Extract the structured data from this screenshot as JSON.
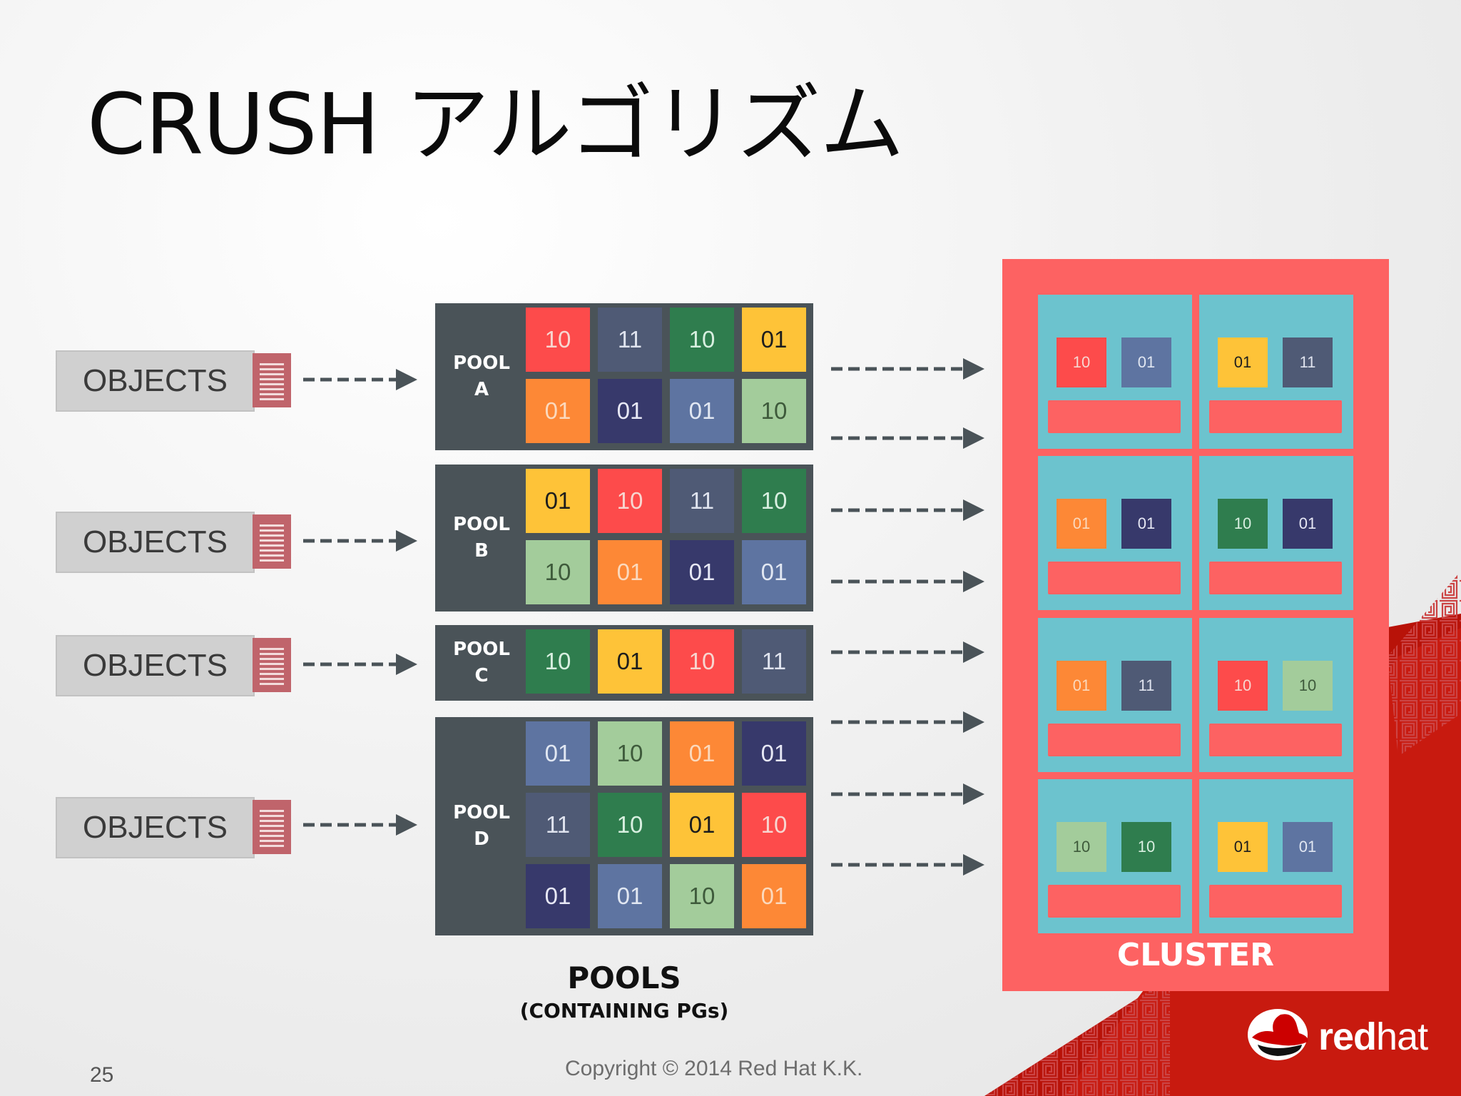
{
  "title": "CRUSH アルゴリズム",
  "objects": {
    "label": "OBJECTS",
    "icon": "document-icon",
    "count": 4
  },
  "pools": [
    {
      "line1": "POOL",
      "line2": "A",
      "cells": [
        [
          {
            "v": "10",
            "c": "red"
          },
          {
            "v": "11",
            "c": "slate"
          },
          {
            "v": "10",
            "c": "green"
          },
          {
            "v": "01",
            "c": "yellow"
          }
        ],
        [
          {
            "v": "01",
            "c": "orange"
          },
          {
            "v": "01",
            "c": "navy"
          },
          {
            "v": "01",
            "c": "blue"
          },
          {
            "v": "10",
            "c": "lightgreen"
          }
        ]
      ]
    },
    {
      "line1": "POOL",
      "line2": "B",
      "cells": [
        [
          {
            "v": "01",
            "c": "yellow"
          },
          {
            "v": "10",
            "c": "red"
          },
          {
            "v": "11",
            "c": "slate"
          },
          {
            "v": "10",
            "c": "green"
          }
        ],
        [
          {
            "v": "10",
            "c": "lightgreen"
          },
          {
            "v": "01",
            "c": "orange"
          },
          {
            "v": "01",
            "c": "navy"
          },
          {
            "v": "01",
            "c": "blue"
          }
        ]
      ]
    },
    {
      "line1": "POOL",
      "line2": "C",
      "cells": [
        [
          {
            "v": "10",
            "c": "green"
          },
          {
            "v": "01",
            "c": "yellow"
          },
          {
            "v": "10",
            "c": "red"
          },
          {
            "v": "11",
            "c": "slate"
          }
        ]
      ]
    },
    {
      "line1": "POOL",
      "line2": "D",
      "cells": [
        [
          {
            "v": "01",
            "c": "blue"
          },
          {
            "v": "10",
            "c": "lightgreen"
          },
          {
            "v": "01",
            "c": "orange"
          },
          {
            "v": "01",
            "c": "navy"
          }
        ],
        [
          {
            "v": "11",
            "c": "slate"
          },
          {
            "v": "10",
            "c": "green"
          },
          {
            "v": "01",
            "c": "yellow"
          },
          {
            "v": "10",
            "c": "red"
          }
        ],
        [
          {
            "v": "01",
            "c": "navy"
          },
          {
            "v": "01",
            "c": "blue"
          },
          {
            "v": "10",
            "c": "lightgreen"
          },
          {
            "v": "01",
            "c": "orange"
          }
        ]
      ]
    }
  ],
  "pools_label": "POOLS",
  "pools_sublabel": "(CONTAINING PGs)",
  "cluster": {
    "label": "CLUSTER",
    "nodes": [
      [
        {
          "v": "10",
          "c": "red"
        },
        {
          "v": "01",
          "c": "blue"
        }
      ],
      [
        {
          "v": "01",
          "c": "yellow"
        },
        {
          "v": "11",
          "c": "slate"
        }
      ],
      [
        {
          "v": "01",
          "c": "orange"
        },
        {
          "v": "01",
          "c": "navy"
        }
      ],
      [
        {
          "v": "10",
          "c": "green"
        },
        {
          "v": "01",
          "c": "navy"
        }
      ],
      [
        {
          "v": "01",
          "c": "orange"
        },
        {
          "v": "11",
          "c": "slate"
        }
      ],
      [
        {
          "v": "10",
          "c": "red"
        },
        {
          "v": "10",
          "c": "lightgreen"
        }
      ],
      [
        {
          "v": "10",
          "c": "lightgreen"
        },
        {
          "v": "10",
          "c": "green"
        }
      ],
      [
        {
          "v": "01",
          "c": "yellow"
        },
        {
          "v": "01",
          "c": "blue"
        }
      ]
    ]
  },
  "colors": {
    "red": {
      "bg": "#fd4b4b",
      "fg": "#f7d6d0"
    },
    "slate": {
      "bg": "#4f5a75",
      "fg": "#dfe3ee"
    },
    "green": {
      "bg": "#2f7d4e",
      "fg": "#d8efe0"
    },
    "yellow": {
      "bg": "#fec338",
      "fg": "#1d1d1d"
    },
    "orange": {
      "bg": "#fd8836",
      "fg": "#fbd9bd"
    },
    "navy": {
      "bg": "#37396b",
      "fg": "#e7e8f5"
    },
    "blue": {
      "bg": "#5e74a1",
      "fg": "#e1e7f2"
    },
    "lightgreen": {
      "bg": "#a3cc9b",
      "fg": "#3e5a3b"
    },
    "pool_bg": "#4a5358",
    "cluster_bg": "#fd6262",
    "node_bg": "#6cc3ce",
    "arrow": "#4a5358",
    "brand_red": "#cc0000"
  },
  "footer": {
    "page_number": "25",
    "copyright": "Copyright © 2014 Red Hat K.K."
  },
  "brand": {
    "text_bold": "red",
    "text_light": "hat",
    "icon": "redhat-shadowman-icon"
  }
}
